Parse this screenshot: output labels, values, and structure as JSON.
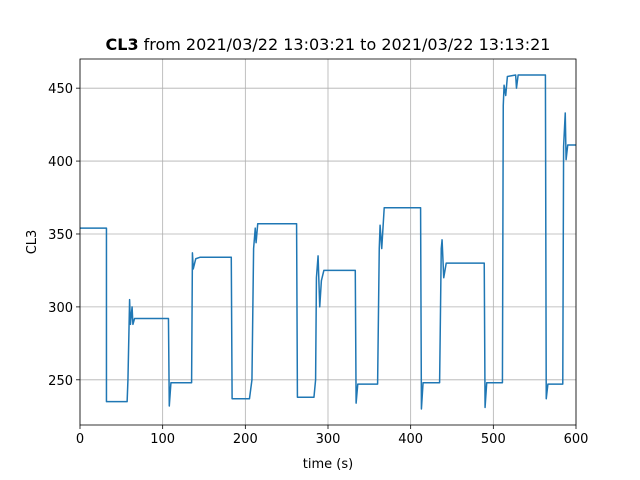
{
  "chart_data": {
    "type": "line",
    "title_bold": "CL3",
    "title": "from 2021/03/22 13:03:21 to 2021/03/22 13:13:21",
    "x_label": "time (s)",
    "y_label": "CL3",
    "xlim": [
      0,
      600
    ],
    "xticks": [
      0,
      100,
      200,
      300,
      400,
      500,
      600
    ],
    "ylim": [
      219,
      470
    ],
    "yticks": [
      250,
      300,
      350,
      400,
      450
    ],
    "grid": true,
    "series": [
      {
        "color": "#1f77b4",
        "x": [
          0,
          32,
          32,
          57,
          58,
          60,
          61,
          63,
          64,
          66,
          107,
          108,
          110,
          135,
          136,
          137,
          140,
          145,
          183,
          184,
          205,
          208,
          210,
          212,
          213,
          215,
          262,
          263,
          283,
          285,
          286,
          288,
          290,
          292,
          295,
          333,
          334,
          336,
          360,
          362,
          363,
          365,
          368,
          412,
          413,
          415,
          435,
          437,
          438,
          440,
          443,
          489,
          490,
          492,
          511,
          512,
          513,
          515,
          517,
          527,
          528,
          530,
          563,
          564,
          566,
          584,
          585,
          587,
          588,
          590,
          600
        ],
        "values": [
          354,
          354,
          235,
          235,
          250,
          305,
          288,
          300,
          288,
          292,
          292,
          232,
          248,
          248,
          337,
          326,
          333,
          334,
          334,
          237,
          237,
          250,
          340,
          354,
          344,
          357,
          357,
          238,
          238,
          250,
          320,
          335,
          300,
          318,
          325,
          325,
          234,
          247,
          247,
          340,
          356,
          340,
          368,
          368,
          230,
          248,
          248,
          340,
          346,
          320,
          330,
          330,
          231,
          248,
          248,
          438,
          452,
          445,
          458,
          459,
          450,
          459,
          459,
          237,
          247,
          247,
          410,
          433,
          401,
          411,
          411
        ]
      }
    ]
  }
}
